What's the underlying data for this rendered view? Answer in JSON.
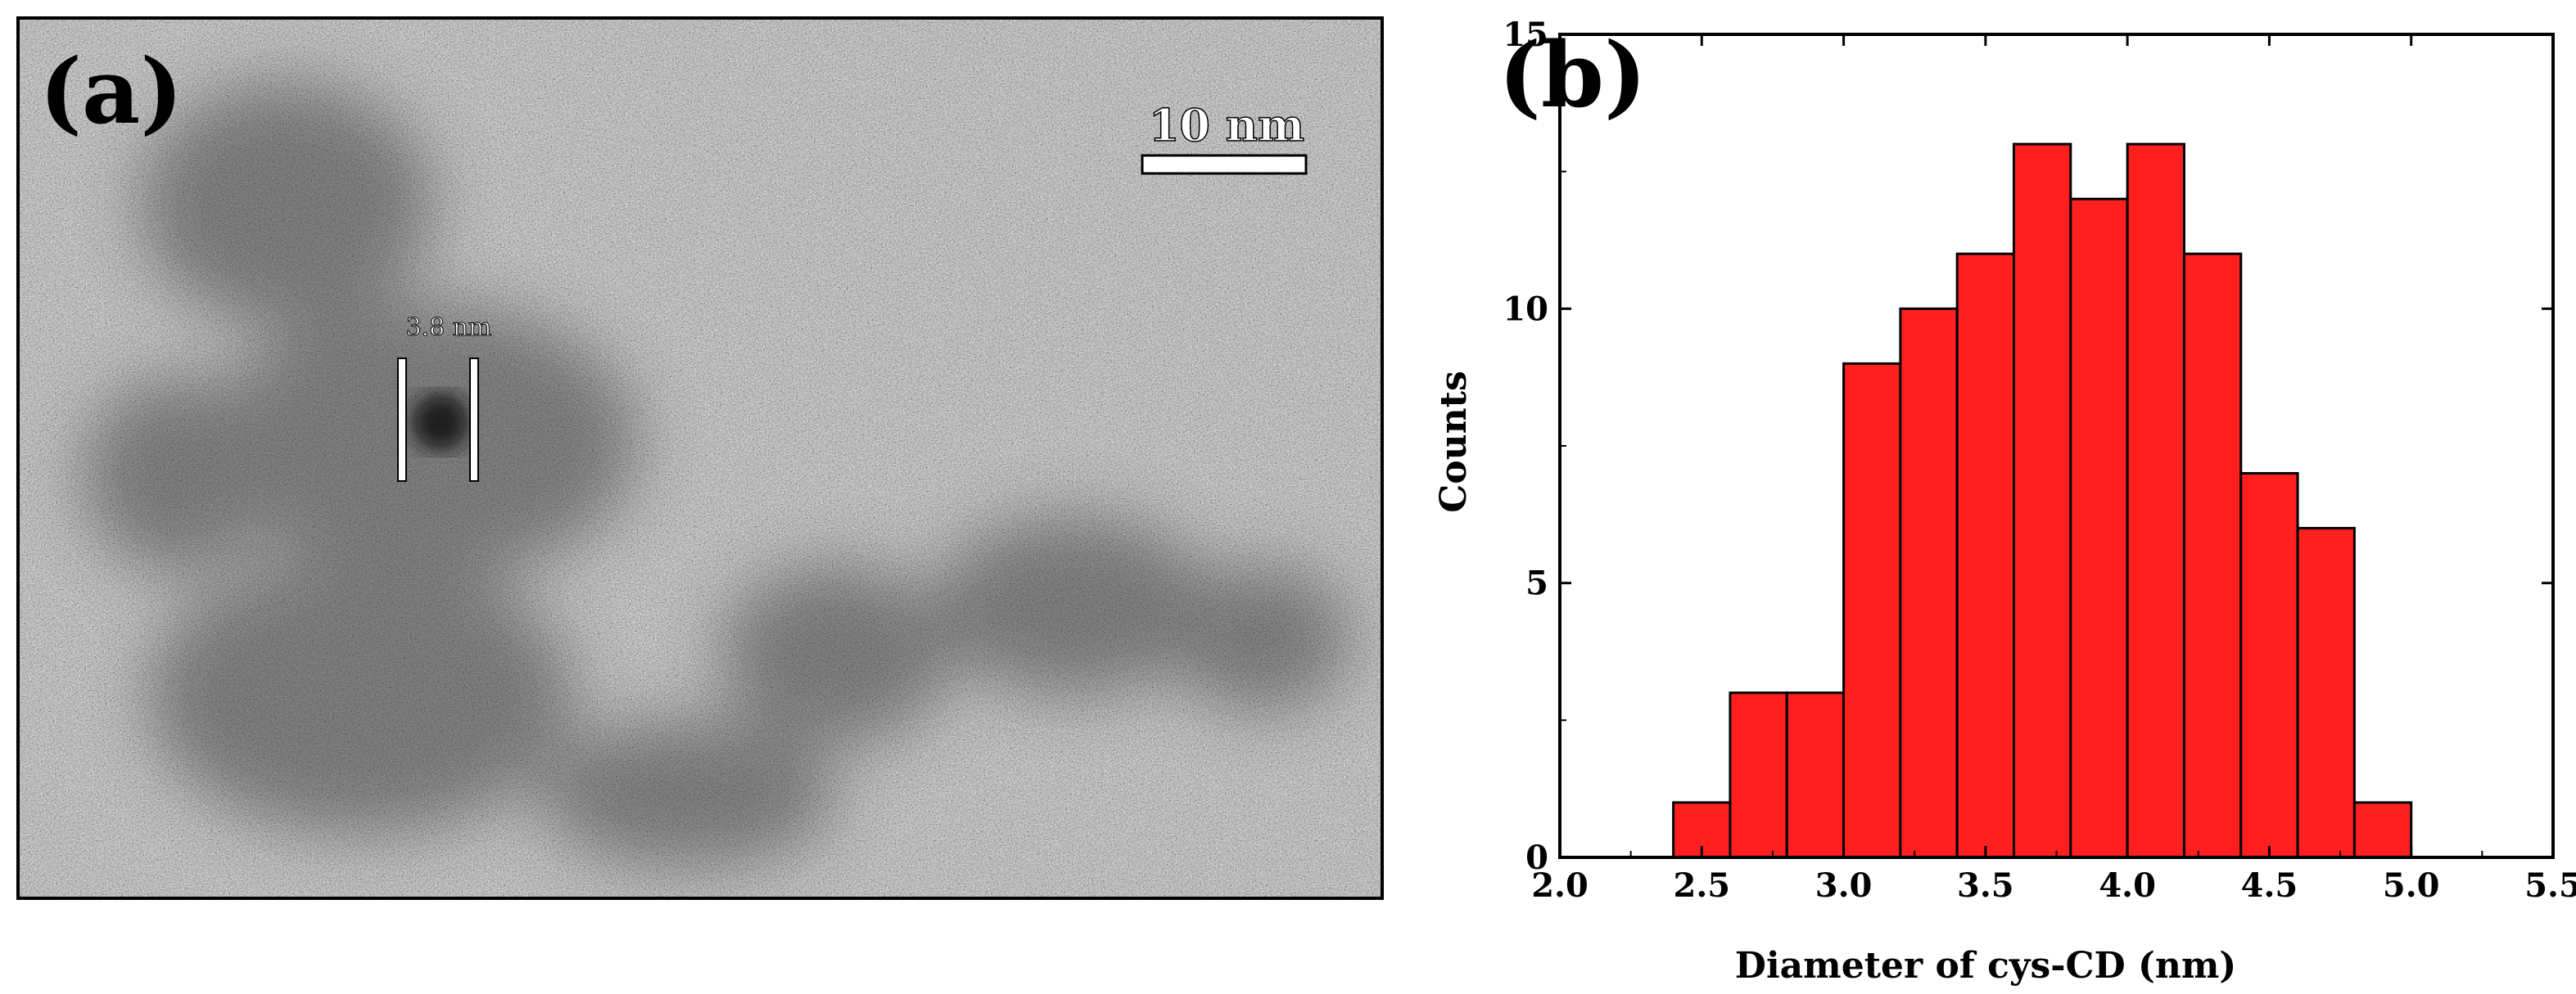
{
  "panel_a": {
    "label": "(a)",
    "scale_bar_label": "10 nm",
    "particle_measure_label": "3.8 nm"
  },
  "panel_b": {
    "label": "(b)"
  },
  "chart_data": {
    "type": "bar",
    "title": "",
    "xlabel": "Diameter of cys-CD (nm)",
    "ylabel": "Counts",
    "xlim": [
      2.0,
      5.5
    ],
    "ylim": [
      0,
      15
    ],
    "x_ticks": [
      "2.0",
      "2.5",
      "3.0",
      "3.5",
      "4.0",
      "4.5",
      "5.0",
      "5.5"
    ],
    "y_ticks": [
      "0",
      "5",
      "10",
      "15"
    ],
    "bin_width": 0.2,
    "bins": [
      2.4,
      2.6,
      2.8,
      3.0,
      3.2,
      3.4,
      3.6,
      3.8,
      4.0,
      4.2,
      4.4,
      4.6,
      4.8
    ],
    "values": [
      1,
      3,
      3,
      9,
      10,
      11,
      13,
      12,
      13,
      11,
      7,
      6,
      1
    ],
    "grid": false,
    "bar_color": "#ff1f1f",
    "bar_edge_color": "#000000"
  }
}
